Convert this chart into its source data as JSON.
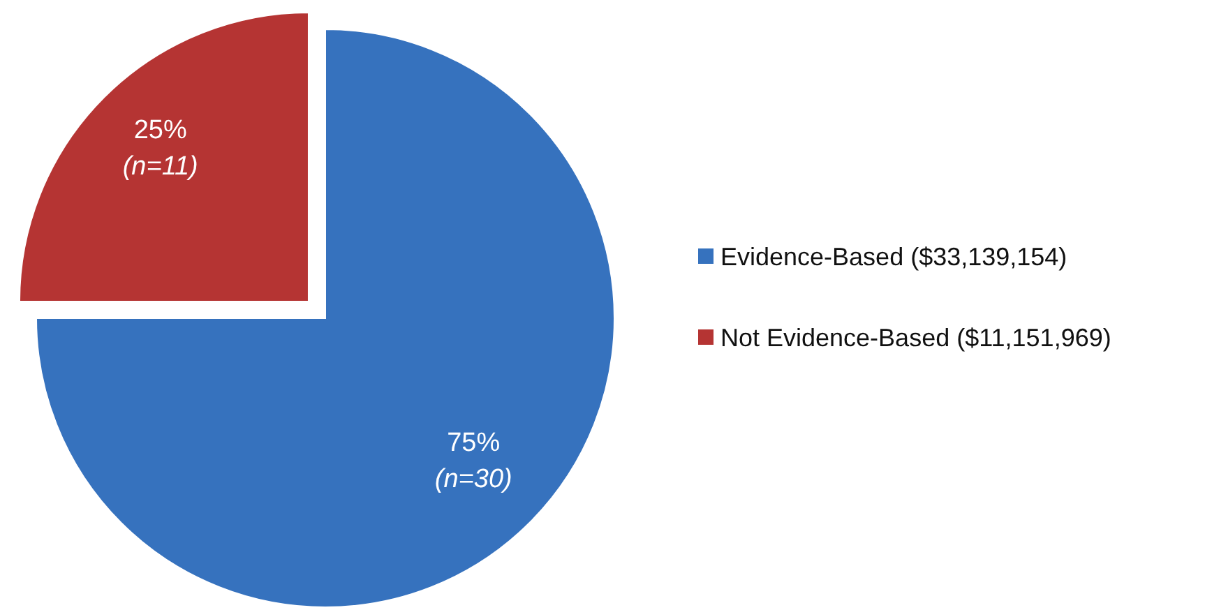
{
  "chart_data": {
    "type": "pie",
    "categories": [
      "Evidence-Based ($33,139,154)",
      "Not Evidence-Based ($11,151,969)"
    ],
    "values": [
      75,
      25
    ],
    "colors": [
      "#3672be",
      "#b53433"
    ],
    "value_labels": [
      "75%\n(n=30)",
      "25%\n(n=11)"
    ],
    "legend": "right"
  }
}
